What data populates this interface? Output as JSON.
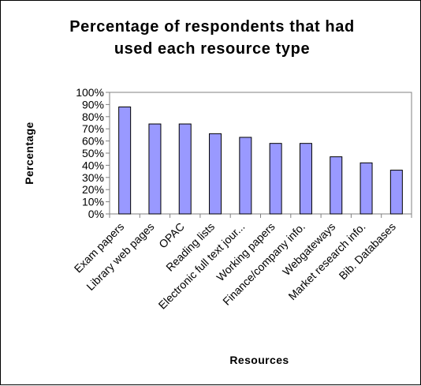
{
  "chart_data": {
    "type": "bar",
    "title_lines": [
      "Percentage of respondents that had",
      "used each resource type"
    ],
    "xlabel": "Resources",
    "ylabel": "Percentage",
    "ylim": [
      0,
      100
    ],
    "yticks": [
      "0%",
      "10%",
      "20%",
      "30%",
      "40%",
      "50%",
      "60%",
      "70%",
      "80%",
      "90%",
      "100%"
    ],
    "grid": false,
    "legend": "none",
    "categories": [
      "Exam papers",
      "Library web pages",
      "OPAC",
      "Reading lists",
      "Electronic full text jour...",
      "Working papers",
      "Finance/company info.",
      "Webgateways",
      "Market research info.",
      "Bib. Databases"
    ],
    "values": [
      88,
      74,
      74,
      66,
      63,
      58,
      58,
      47,
      42,
      36
    ],
    "colors": {
      "bar_fill": "#9999ff",
      "bar_stroke": "#000000",
      "plot_background": "#ffffff",
      "axis": "#808080"
    }
  }
}
